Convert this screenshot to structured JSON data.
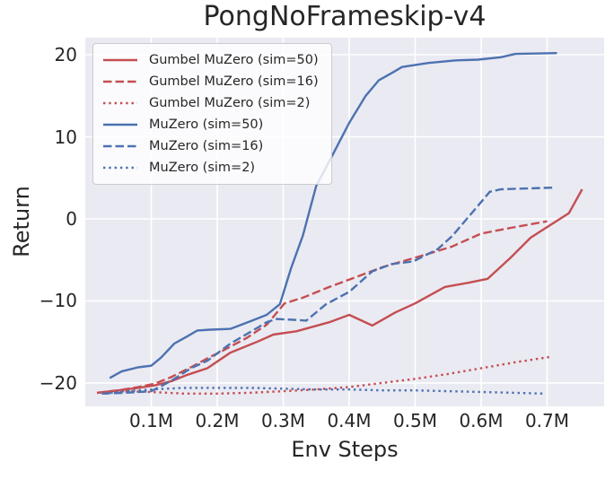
{
  "title": "PongNoFrameskip-v4",
  "styles": {
    "plot_bg": "#EAEAF2",
    "grid_color": "#FFFFFF",
    "text_color": "#262626",
    "red": "#C44E52",
    "blue": "#4C72B0"
  },
  "chart_data": {
    "type": "line",
    "title": "PongNoFrameskip-v4",
    "xlabel": "Env Steps",
    "ylabel": "Return",
    "x_unit": "M (millions of env steps)",
    "xlim": [
      0,
      0.7864
    ],
    "ylim": [
      -22.85,
      22.08
    ],
    "grid": true,
    "legend_position": "upper left",
    "xticks": {
      "values": [
        0.1,
        0.2,
        0.3,
        0.4,
        0.5,
        0.6,
        0.7
      ],
      "labels": [
        "0.1M",
        "0.2M",
        "0.3M",
        "0.4M",
        "0.5M",
        "0.6M",
        "0.7M"
      ]
    },
    "yticks": {
      "values": [
        20,
        10,
        0,
        -10,
        -20
      ],
      "labels": [
        "20",
        "10",
        "0",
        "−10",
        "−20"
      ]
    },
    "series": [
      {
        "name": "Gumbel MuZero (sim=50)",
        "color": "#C44E52",
        "style": "solid",
        "points": [
          [
            0.018,
            -21.2
          ],
          [
            0.05,
            -20.9
          ],
          [
            0.08,
            -20.6
          ],
          [
            0.105,
            -20.3
          ],
          [
            0.13,
            -19.8
          ],
          [
            0.155,
            -19.0
          ],
          [
            0.185,
            -18.2
          ],
          [
            0.22,
            -16.3
          ],
          [
            0.26,
            -15.0
          ],
          [
            0.285,
            -14.1
          ],
          [
            0.32,
            -13.7
          ],
          [
            0.37,
            -12.6
          ],
          [
            0.4,
            -11.7
          ],
          [
            0.435,
            -13.0
          ],
          [
            0.47,
            -11.4
          ],
          [
            0.5,
            -10.3
          ],
          [
            0.545,
            -8.3
          ],
          [
            0.58,
            -7.8
          ],
          [
            0.61,
            -7.3
          ],
          [
            0.645,
            -4.7
          ],
          [
            0.675,
            -2.3
          ],
          [
            0.7,
            -1.0
          ],
          [
            0.733,
            0.7
          ],
          [
            0.753,
            3.6
          ]
        ]
      },
      {
        "name": "Gumbel MuZero (sim=16)",
        "color": "#C44E52",
        "style": "dashed",
        "points": [
          [
            0.018,
            -21.2
          ],
          [
            0.05,
            -20.9
          ],
          [
            0.08,
            -20.5
          ],
          [
            0.105,
            -20.1
          ],
          [
            0.13,
            -19.3
          ],
          [
            0.16,
            -18.1
          ],
          [
            0.185,
            -17.0
          ],
          [
            0.21,
            -16.0
          ],
          [
            0.245,
            -14.5
          ],
          [
            0.275,
            -12.9
          ],
          [
            0.302,
            -10.3
          ],
          [
            0.33,
            -9.6
          ],
          [
            0.37,
            -8.3
          ],
          [
            0.4,
            -7.4
          ],
          [
            0.45,
            -5.9
          ],
          [
            0.51,
            -4.5
          ],
          [
            0.555,
            -3.4
          ],
          [
            0.6,
            -1.8
          ],
          [
            0.645,
            -1.1
          ],
          [
            0.7,
            -0.3
          ]
        ]
      },
      {
        "name": "Gumbel MuZero (sim=2)",
        "color": "#C44E52",
        "style": "dotted",
        "points": [
          [
            0.018,
            -21.2
          ],
          [
            0.06,
            -21.0
          ],
          [
            0.1,
            -21.1
          ],
          [
            0.15,
            -21.3
          ],
          [
            0.2,
            -21.3
          ],
          [
            0.25,
            -21.2
          ],
          [
            0.3,
            -21.0
          ],
          [
            0.35,
            -20.8
          ],
          [
            0.4,
            -20.5
          ],
          [
            0.45,
            -20.0
          ],
          [
            0.5,
            -19.5
          ],
          [
            0.55,
            -18.9
          ],
          [
            0.6,
            -18.2
          ],
          [
            0.65,
            -17.5
          ],
          [
            0.706,
            -16.8
          ]
        ]
      },
      {
        "name": "MuZero (sim=50)",
        "color": "#4C72B0",
        "style": "solid",
        "points": [
          [
            0.037,
            -19.4
          ],
          [
            0.055,
            -18.6
          ],
          [
            0.08,
            -18.1
          ],
          [
            0.1,
            -17.9
          ],
          [
            0.115,
            -16.9
          ],
          [
            0.135,
            -15.2
          ],
          [
            0.155,
            -14.3
          ],
          [
            0.17,
            -13.6
          ],
          [
            0.19,
            -13.5
          ],
          [
            0.22,
            -13.4
          ],
          [
            0.25,
            -12.5
          ],
          [
            0.275,
            -11.7
          ],
          [
            0.295,
            -10.4
          ],
          [
            0.312,
            -6.0
          ],
          [
            0.33,
            -2.0
          ],
          [
            0.35,
            4.0
          ],
          [
            0.375,
            7.8
          ],
          [
            0.4,
            11.7
          ],
          [
            0.425,
            15.0
          ],
          [
            0.445,
            16.9
          ],
          [
            0.465,
            17.8
          ],
          [
            0.48,
            18.5
          ],
          [
            0.52,
            19.0
          ],
          [
            0.56,
            19.3
          ],
          [
            0.595,
            19.4
          ],
          [
            0.63,
            19.7
          ],
          [
            0.652,
            20.1
          ],
          [
            0.715,
            20.2
          ]
        ]
      },
      {
        "name": "MuZero (sim=16)",
        "color": "#4C72B0",
        "style": "dashed",
        "points": [
          [
            0.025,
            -21.3
          ],
          [
            0.06,
            -21.2
          ],
          [
            0.1,
            -21.0
          ],
          [
            0.115,
            -20.4
          ],
          [
            0.135,
            -19.5
          ],
          [
            0.16,
            -18.2
          ],
          [
            0.185,
            -17.3
          ],
          [
            0.22,
            -15.2
          ],
          [
            0.25,
            -13.8
          ],
          [
            0.275,
            -12.6
          ],
          [
            0.29,
            -12.2
          ],
          [
            0.315,
            -12.3
          ],
          [
            0.335,
            -12.4
          ],
          [
            0.365,
            -10.4
          ],
          [
            0.4,
            -8.9
          ],
          [
            0.435,
            -6.4
          ],
          [
            0.465,
            -5.5
          ],
          [
            0.497,
            -5.2
          ],
          [
            0.534,
            -3.7
          ],
          [
            0.556,
            -2.1
          ],
          [
            0.589,
            1.0
          ],
          [
            0.613,
            3.3
          ],
          [
            0.63,
            3.6
          ],
          [
            0.708,
            3.8
          ]
        ]
      },
      {
        "name": "MuZero (sim=2)",
        "color": "#4C72B0",
        "style": "dotted",
        "points": [
          [
            0.03,
            -21.3
          ],
          [
            0.06,
            -21.0
          ],
          [
            0.1,
            -20.8
          ],
          [
            0.15,
            -20.6
          ],
          [
            0.2,
            -20.6
          ],
          [
            0.25,
            -20.6
          ],
          [
            0.3,
            -20.7
          ],
          [
            0.35,
            -20.8
          ],
          [
            0.4,
            -20.8
          ],
          [
            0.45,
            -20.9
          ],
          [
            0.5,
            -20.9
          ],
          [
            0.55,
            -21.0
          ],
          [
            0.6,
            -21.1
          ],
          [
            0.65,
            -21.2
          ],
          [
            0.695,
            -21.3
          ]
        ]
      }
    ]
  }
}
